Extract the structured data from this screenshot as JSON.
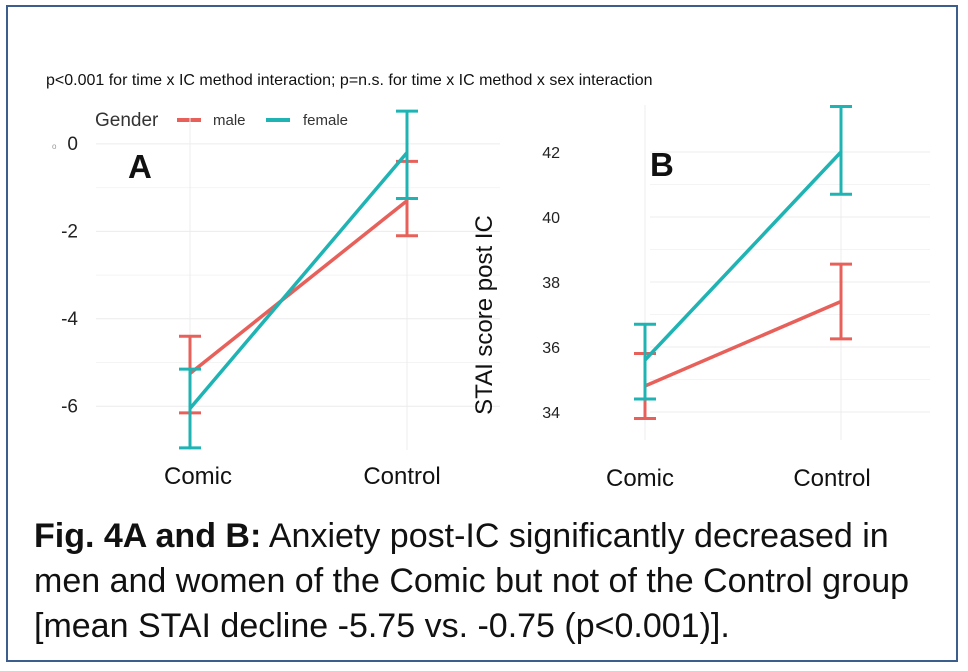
{
  "note": "p<0.001 for time x IC method interaction; p=n.s. for time x IC method x sex interaction",
  "legend": {
    "title": "Gender",
    "items": [
      {
        "label": "male",
        "color": "#e8605a"
      },
      {
        "label": "female",
        "color": "#1fb3b3"
      }
    ]
  },
  "caption": {
    "bold": "Fig. 4A and B:",
    "text": " Anxiety post-IC significantly decreased in men and women of the Comic but not of the Control group [mean STAI decline -5.75 vs. -0.75 (p<0.001)]."
  },
  "chart_data": [
    {
      "type": "line",
      "panel_label": "A",
      "categories": [
        "Comic",
        "Control"
      ],
      "yticks": [
        "0",
        "-2",
        "-4",
        "-6"
      ],
      "ytick_values": [
        0,
        -2,
        -4,
        -6
      ],
      "ylim": [
        -7.0,
        0.5
      ],
      "ylabel": "",
      "series": [
        {
          "name": "male",
          "color": "#e8605a",
          "values": [
            -5.25,
            -1.3
          ],
          "err_low": [
            -6.15,
            -2.1
          ],
          "err_high": [
            -4.4,
            -0.4
          ]
        },
        {
          "name": "female",
          "color": "#1fb3b3",
          "values": [
            -6.05,
            -0.2
          ],
          "err_low": [
            -6.95,
            -1.25
          ],
          "err_high": [
            -5.15,
            0.75
          ]
        }
      ]
    },
    {
      "type": "line",
      "panel_label": "B",
      "categories": [
        "Comic",
        "Control"
      ],
      "yticks": [
        "34",
        "36",
        "38",
        "40",
        "42"
      ],
      "ytick_values": [
        34,
        36,
        38,
        40,
        42
      ],
      "ylim": [
        33.2,
        43.6
      ],
      "ylabel": "STAI score post IC",
      "series": [
        {
          "name": "male",
          "color": "#e8605a",
          "values": [
            34.8,
            37.4
          ],
          "err_low": [
            33.8,
            36.25
          ],
          "err_high": [
            35.8,
            38.55
          ]
        },
        {
          "name": "female",
          "color": "#1fb3b3",
          "values": [
            35.6,
            42.0
          ],
          "err_low": [
            34.4,
            40.7
          ],
          "err_high": [
            36.7,
            43.4
          ]
        }
      ]
    }
  ]
}
